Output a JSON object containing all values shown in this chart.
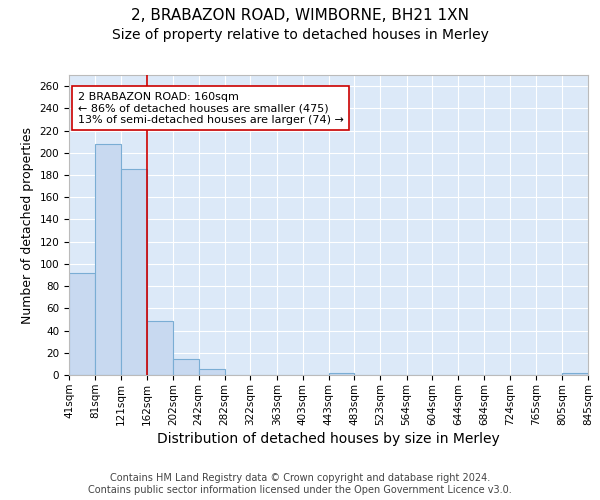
{
  "title_line1": "2, BRABAZON ROAD, WIMBORNE, BH21 1XN",
  "title_line2": "Size of property relative to detached houses in Merley",
  "xlabel": "Distribution of detached houses by size in Merley",
  "ylabel": "Number of detached properties",
  "bar_edges": [
    41,
    81,
    121,
    162,
    202,
    242,
    282,
    322,
    363,
    403,
    443,
    483,
    523,
    564,
    604,
    644,
    684,
    724,
    765,
    805,
    845
  ],
  "bar_heights": [
    92,
    208,
    185,
    49,
    14,
    5,
    0,
    0,
    0,
    0,
    2,
    0,
    0,
    0,
    0,
    0,
    0,
    0,
    0,
    2
  ],
  "bar_color": "#c8d9f0",
  "bar_edgecolor": "#7aadd4",
  "bar_linewidth": 0.8,
  "vline_x": 162,
  "vline_color": "#cc0000",
  "vline_linewidth": 1.2,
  "annotation_text": "2 BRABAZON ROAD: 160sqm\n← 86% of detached houses are smaller (475)\n13% of semi-detached houses are larger (74) →",
  "annotation_fontsize": 8.0,
  "annotation_box_color": "#ffffff",
  "annotation_box_edgecolor": "#cc0000",
  "ylim": [
    0,
    270
  ],
  "yticks": [
    0,
    20,
    40,
    60,
    80,
    100,
    120,
    140,
    160,
    180,
    200,
    220,
    240,
    260
  ],
  "background_color": "#dce9f8",
  "grid_color": "#ffffff",
  "tick_labels": [
    "41sqm",
    "81sqm",
    "121sqm",
    "162sqm",
    "202sqm",
    "242sqm",
    "282sqm",
    "322sqm",
    "363sqm",
    "403sqm",
    "443sqm",
    "483sqm",
    "523sqm",
    "564sqm",
    "604sqm",
    "644sqm",
    "684sqm",
    "724sqm",
    "765sqm",
    "805sqm",
    "845sqm"
  ],
  "footer_text": "Contains HM Land Registry data © Crown copyright and database right 2024.\nContains public sector information licensed under the Open Government Licence v3.0.",
  "title_fontsize": 11,
  "subtitle_fontsize": 10,
  "xlabel_fontsize": 10,
  "ylabel_fontsize": 9,
  "tick_fontsize": 7.5,
  "footer_fontsize": 7
}
